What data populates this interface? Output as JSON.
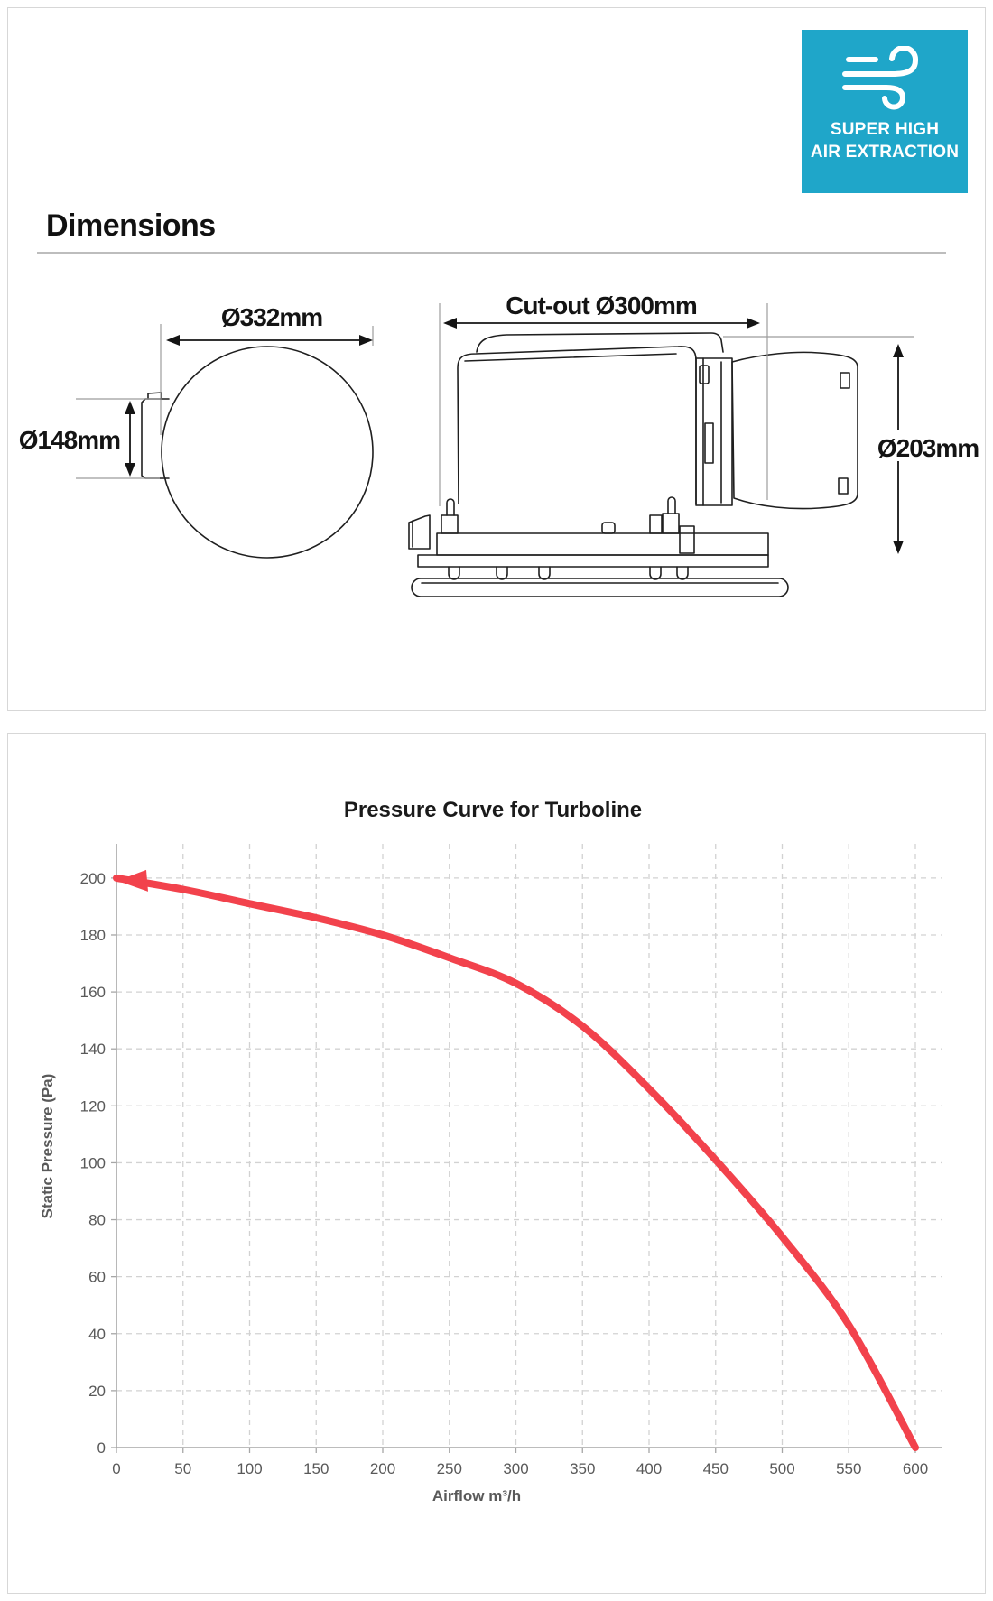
{
  "badge": {
    "line1": "SUPER HIGH",
    "line2": "AIR EXTRACTION",
    "color": "#1FA6C9",
    "icon": "wind-icon"
  },
  "dimensions": {
    "heading": "Dimensions",
    "front_diameter": "Ø332mm",
    "front_spigot": "Ø148mm",
    "side_cutout": "Cut-out Ø300mm",
    "side_duct": "Ø203mm"
  },
  "chart_data": {
    "type": "line",
    "title": "Pressure Curve for Turboline",
    "xlabel": "Airflow m³/h",
    "ylabel": "Static Pressure (Pa)",
    "x": [
      0,
      50,
      100,
      150,
      200,
      250,
      300,
      350,
      400,
      450,
      500,
      550,
      600
    ],
    "y": [
      200,
      196,
      191,
      186,
      180,
      172,
      163,
      148,
      126,
      101,
      74,
      43,
      0
    ],
    "x_ticks": [
      0,
      50,
      100,
      150,
      200,
      250,
      300,
      350,
      400,
      450,
      500,
      550,
      600
    ],
    "y_ticks": [
      0,
      20,
      40,
      60,
      80,
      100,
      120,
      140,
      160,
      180,
      200
    ],
    "xlim": [
      0,
      620
    ],
    "ylim": [
      0,
      212
    ],
    "grid": "dashed",
    "legend": "none",
    "arrow_at_start": true,
    "line_color": "#F2424C",
    "axis_color": "#a6a6a6",
    "grid_color": "#d2d2d2",
    "label_color": "#595959",
    "title_color": "#1a1a1a"
  }
}
